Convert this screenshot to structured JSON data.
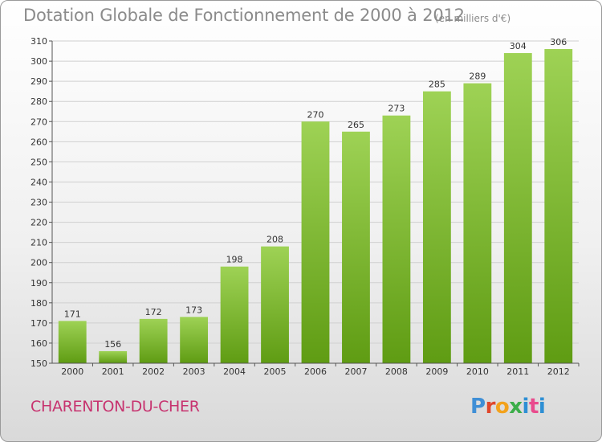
{
  "title": "Dotation Globale de Fonctionnement de 2000 à 2012",
  "subtitle": "(en milliers d'€)",
  "commune": "CHARENTON-DU-CHER",
  "logo": {
    "text": "Proxiti"
  },
  "colors": {
    "bar_top": "#9ed255",
    "bar_bottom": "#5f9c13",
    "grid": "#d0d0d0",
    "commune": "#c7336f",
    "title": "#8b8b8b"
  },
  "chart_data": {
    "type": "bar",
    "title": "Dotation Globale de Fonctionnement de 2000 à 2012",
    "subtitle": "(en milliers d'€)",
    "categories": [
      "2000",
      "2001",
      "2002",
      "2003",
      "2004",
      "2005",
      "2006",
      "2007",
      "2008",
      "2009",
      "2010",
      "2011",
      "2012"
    ],
    "values": [
      171,
      156,
      172,
      173,
      198,
      208,
      270,
      265,
      273,
      285,
      289,
      304,
      306
    ],
    "ylim": [
      150,
      310
    ],
    "yticks": [
      150,
      160,
      170,
      180,
      190,
      200,
      210,
      220,
      230,
      240,
      250,
      260,
      270,
      280,
      290,
      300,
      310
    ],
    "grid": true,
    "data_labels": true
  }
}
